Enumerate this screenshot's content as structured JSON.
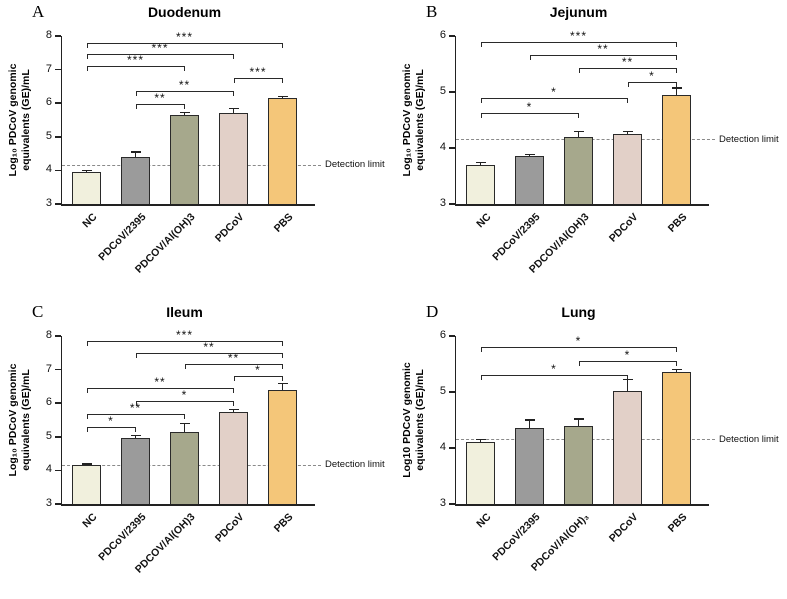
{
  "figure": {
    "background": "#ffffff"
  },
  "chart_data": [
    {
      "type": "bar",
      "panel": "A",
      "title": "Duodenum",
      "ylabel": "Log₁₀ PDCoV genomic\nequivalents (GE)/mL",
      "ylim": [
        3,
        8
      ],
      "yticks": [
        3,
        4,
        5,
        6,
        7,
        8
      ],
      "categories": [
        "NC",
        "PDCoV/2395",
        "PDCOV/Al(OH)3",
        "PDCoV",
        "PBS"
      ],
      "values": [
        3.95,
        4.4,
        5.65,
        5.72,
        6.15
      ],
      "errors": [
        0.05,
        0.15,
        0.08,
        0.12,
        0.05
      ],
      "bar_colors": [
        "#f1f0dd",
        "#9b9b9b",
        "#a6a88c",
        "#e2d0c8",
        "#f4c679"
      ],
      "detection_limit": {
        "value": 4.15,
        "label": "Detection limit"
      },
      "brackets": [
        {
          "x1": 1,
          "x2": 2,
          "y": 5.98,
          "label": "**"
        },
        {
          "x1": 1,
          "x2": 3,
          "y": 6.36,
          "label": "**"
        },
        {
          "x1": 3,
          "x2": 4,
          "y": 6.74,
          "label": "***"
        },
        {
          "x1": 0,
          "x2": 2,
          "y": 7.1,
          "label": "***"
        },
        {
          "x1": 0,
          "x2": 3,
          "y": 7.45,
          "label": "***"
        },
        {
          "x1": 0,
          "x2": 4,
          "y": 7.8,
          "label": "***"
        }
      ]
    },
    {
      "type": "bar",
      "panel": "B",
      "title": "Jejunum",
      "ylabel": "Log₁₀ PDCoV genomic\nequivalents (GE)/mL",
      "ylim": [
        3,
        6
      ],
      "yticks": [
        3,
        4,
        5,
        6
      ],
      "categories": [
        "NC",
        "PDCoV/2395",
        "PDCOV/Al(OH)3",
        "PDCoV",
        "PBS"
      ],
      "values": [
        3.7,
        3.85,
        4.2,
        4.25,
        4.95
      ],
      "errors": [
        0.04,
        0.03,
        0.1,
        0.05,
        0.12
      ],
      "bar_colors": [
        "#f1f0dd",
        "#9b9b9b",
        "#a6a88c",
        "#e2d0c8",
        "#f4c679"
      ],
      "detection_limit": {
        "value": 4.15,
        "label": "Detection limit"
      },
      "brackets": [
        {
          "x1": 0,
          "x2": 2,
          "y": 4.62,
          "label": "*"
        },
        {
          "x1": 0,
          "x2": 3,
          "y": 4.9,
          "label": "*"
        },
        {
          "x1": 3,
          "x2": 4,
          "y": 5.18,
          "label": "*"
        },
        {
          "x1": 2,
          "x2": 4,
          "y": 5.42,
          "label": "**"
        },
        {
          "x1": 1,
          "x2": 4,
          "y": 5.66,
          "label": "**"
        },
        {
          "x1": 0,
          "x2": 4,
          "y": 5.9,
          "label": "***"
        }
      ]
    },
    {
      "type": "bar",
      "panel": "C",
      "title": "Ileum",
      "ylabel": "Log₁₀ PDCoV genomic\nequivalents (GE)/mL",
      "ylim": [
        3,
        8
      ],
      "yticks": [
        3,
        4,
        5,
        6,
        7,
        8
      ],
      "categories": [
        "NC",
        "PDCoV/2395",
        "PDCOV/Al(OH)3",
        "PDCoV",
        "PBS"
      ],
      "values": [
        4.15,
        4.95,
        5.15,
        5.75,
        6.4
      ],
      "errors": [
        0.04,
        0.08,
        0.25,
        0.06,
        0.18
      ],
      "bar_colors": [
        "#f1f0dd",
        "#9b9b9b",
        "#a6a88c",
        "#e2d0c8",
        "#f4c679"
      ],
      "detection_limit": {
        "value": 4.15,
        "label": "Detection limit"
      },
      "brackets": [
        {
          "x1": 0,
          "x2": 1,
          "y": 5.3,
          "label": "*"
        },
        {
          "x1": 0,
          "x2": 2,
          "y": 5.68,
          "label": "**"
        },
        {
          "x1": 1,
          "x2": 3,
          "y": 6.06,
          "label": "*"
        },
        {
          "x1": 0,
          "x2": 3,
          "y": 6.44,
          "label": "**"
        },
        {
          "x1": 3,
          "x2": 4,
          "y": 6.82,
          "label": "*"
        },
        {
          "x1": 2,
          "x2": 4,
          "y": 7.16,
          "label": "**"
        },
        {
          "x1": 1,
          "x2": 4,
          "y": 7.5,
          "label": "**"
        },
        {
          "x1": 0,
          "x2": 4,
          "y": 7.84,
          "label": "***"
        }
      ]
    },
    {
      "type": "bar",
      "panel": "D",
      "title": "Lung",
      "ylabel": "Log10 PDCoV genomic\nequivalents (GE)/mL",
      "ylim": [
        3,
        6
      ],
      "yticks": [
        3,
        4,
        5,
        6
      ],
      "categories": [
        "NC",
        "PDCoV/2395",
        "PDCoV/Al(OH)₃",
        "PDCoV",
        "PBS"
      ],
      "values": [
        4.1,
        4.35,
        4.4,
        5.02,
        5.35
      ],
      "errors": [
        0.05,
        0.15,
        0.12,
        0.2,
        0.05
      ],
      "bar_colors": [
        "#f1f0dd",
        "#9b9b9b",
        "#a6a88c",
        "#e2d0c8",
        "#f4c679"
      ],
      "detection_limit": {
        "value": 4.15,
        "label": "Detection limit"
      },
      "brackets": [
        {
          "x1": 0,
          "x2": 3,
          "y": 5.3,
          "label": "*"
        },
        {
          "x1": 2,
          "x2": 4,
          "y": 5.55,
          "label": "*"
        },
        {
          "x1": 0,
          "x2": 4,
          "y": 5.8,
          "label": "*"
        }
      ]
    }
  ]
}
